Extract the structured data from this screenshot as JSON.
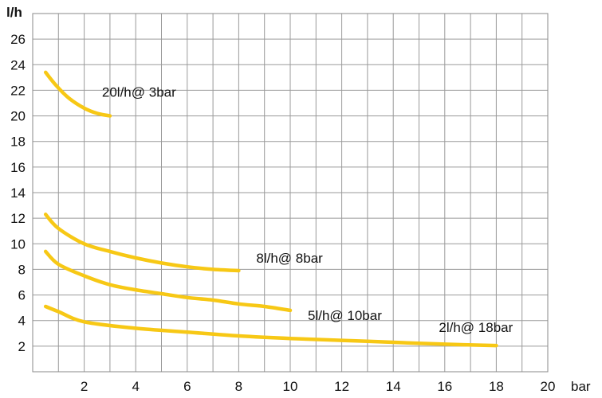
{
  "chart_data": {
    "type": "line",
    "title": "",
    "xlabel": "bar",
    "ylabel": "l/h",
    "xlim": [
      0,
      20
    ],
    "ylim": [
      0,
      28
    ],
    "x_ticks": [
      "2",
      "4",
      "6",
      "8",
      "10",
      "12",
      "14",
      "16",
      "18",
      "20"
    ],
    "y_ticks": [
      "2",
      "4",
      "6",
      "8",
      "10",
      "12",
      "14",
      "16",
      "18",
      "20",
      "22",
      "24",
      "26"
    ],
    "grid": true,
    "legend": "none",
    "line_color": "#f7c815",
    "series": [
      {
        "name": "20l/h@ 3bar",
        "x": [
          0.5,
          0.9,
          1.4,
          2.0,
          2.5,
          3.0
        ],
        "y": [
          23.4,
          22.4,
          21.4,
          20.6,
          20.2,
          20.0
        ]
      },
      {
        "name": "8l/h@ 8bar",
        "x": [
          0.5,
          1.0,
          2.0,
          3.0,
          4.0,
          5.0,
          6.0,
          7.0,
          8.0
        ],
        "y": [
          12.3,
          11.2,
          10.0,
          9.4,
          8.9,
          8.5,
          8.2,
          8.0,
          7.9
        ]
      },
      {
        "name": "5l/h@ 10bar",
        "x": [
          0.5,
          1.0,
          2.0,
          3.0,
          4.0,
          5.0,
          6.0,
          7.0,
          8.0,
          9.0,
          10.0
        ],
        "y": [
          9.4,
          8.4,
          7.5,
          6.8,
          6.4,
          6.1,
          5.8,
          5.6,
          5.3,
          5.1,
          4.8
        ]
      },
      {
        "name": "2l/h@ 18bar",
        "x": [
          0.5,
          1.0,
          2.0,
          4.0,
          6.0,
          8.0,
          10.0,
          12.0,
          14.0,
          16.0,
          18.0
        ],
        "y": [
          5.1,
          4.7,
          3.9,
          3.4,
          3.1,
          2.8,
          2.6,
          2.45,
          2.3,
          2.15,
          2.05
        ]
      }
    ]
  }
}
